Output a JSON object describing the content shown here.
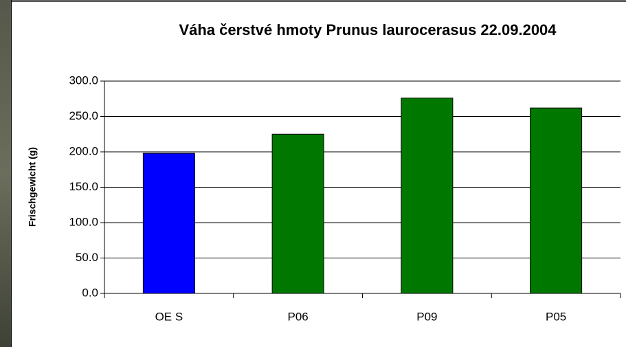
{
  "chart_data": {
    "type": "bar",
    "title": "Váha čerstvé hmoty Prunus laurocerasus 22.09.2004",
    "y_label": "Frischgewicht (g)",
    "categories": [
      "OE S",
      "P06",
      "P09",
      "P05"
    ],
    "values": [
      198,
      225,
      276,
      262
    ],
    "colors": [
      "#0000ff",
      "#007800",
      "#007800",
      "#007800"
    ],
    "ylim": [
      0,
      300
    ],
    "yticks": [
      {
        "value": 0,
        "label": "0.0"
      },
      {
        "value": 50,
        "label": "50.0"
      },
      {
        "value": 100,
        "label": "100.0"
      },
      {
        "value": 150,
        "label": "150.0"
      },
      {
        "value": 200,
        "label": "200.0"
      },
      {
        "value": 250,
        "label": "250.0"
      },
      {
        "value": 300,
        "label": "300.0"
      }
    ],
    "grid": true
  }
}
